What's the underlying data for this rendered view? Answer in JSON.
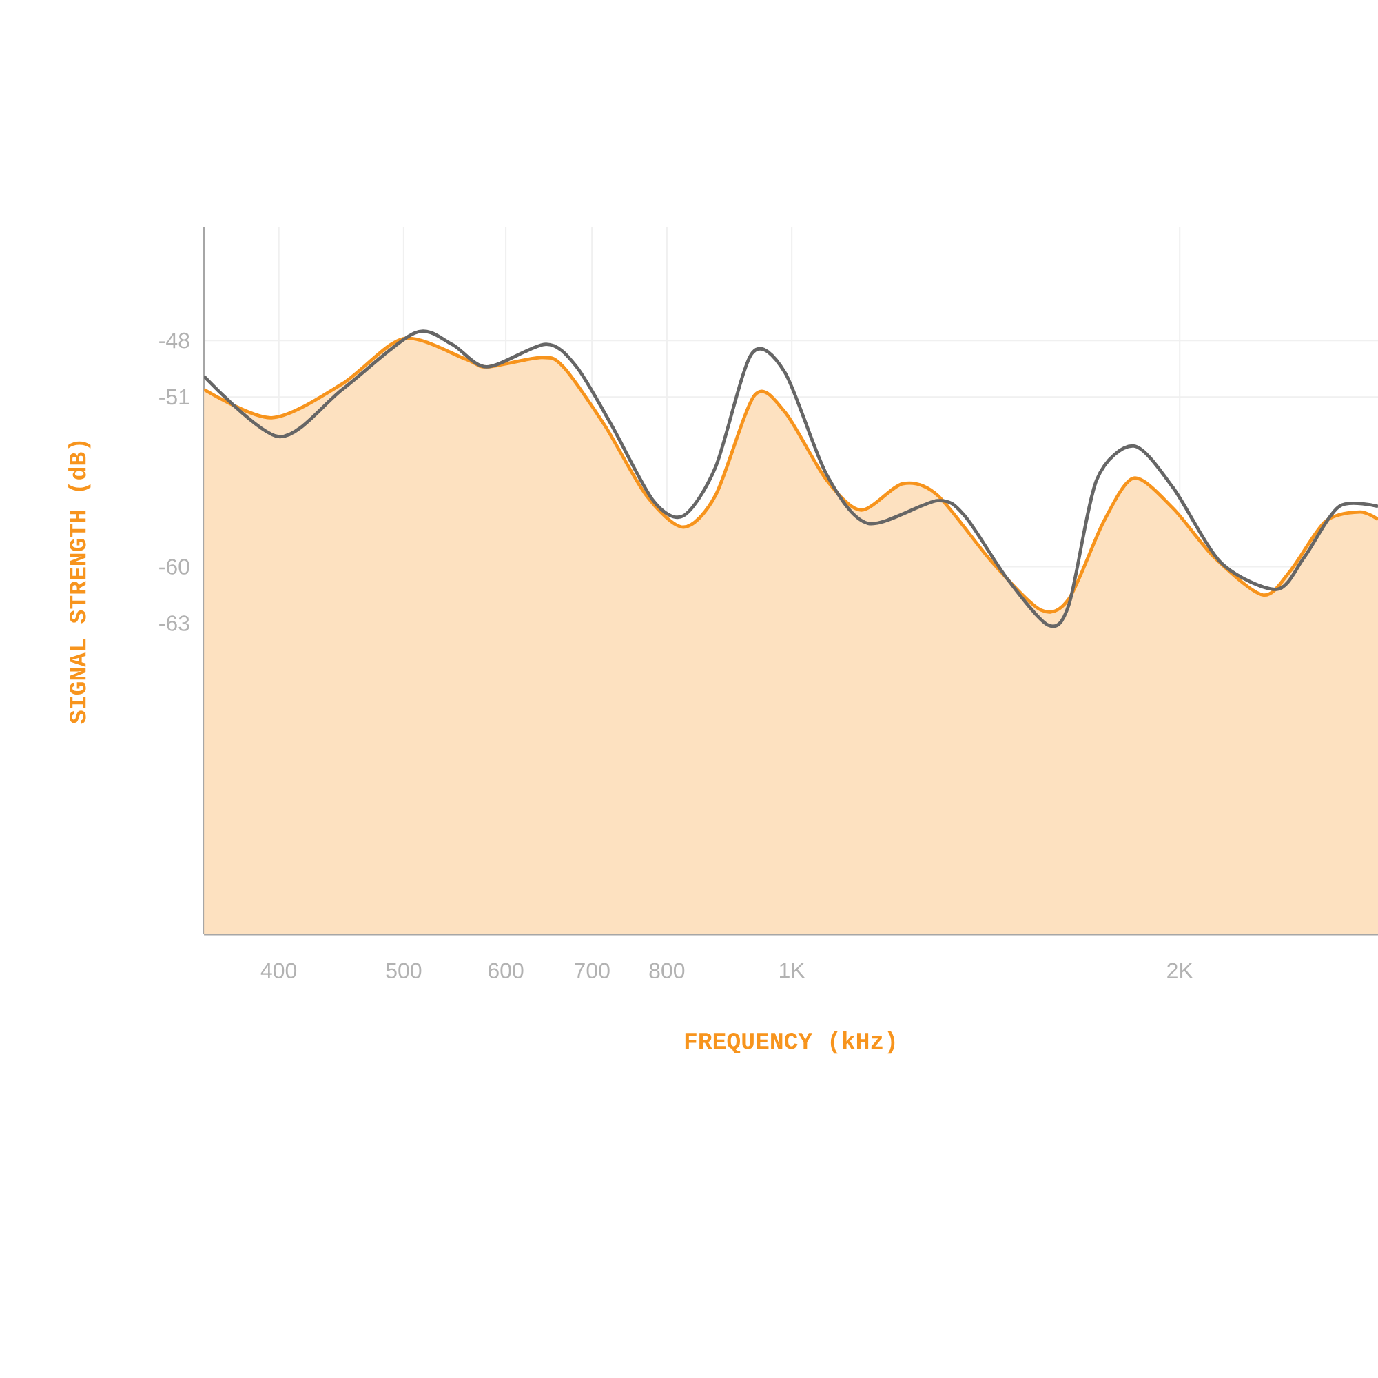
{
  "chart_data": {
    "type": "area",
    "xlabel": "FREQUENCY (kHz)",
    "ylabel": "SIGNAL STRENGTH (dB)",
    "log": "x",
    "grid": true,
    "xlim": [
      350,
      2850
    ],
    "xticks": [
      {
        "value": 400,
        "label": "400"
      },
      {
        "value": 500,
        "label": "500"
      },
      {
        "value": 600,
        "label": "600"
      },
      {
        "value": 700,
        "label": "700"
      },
      {
        "value": 800,
        "label": "800"
      },
      {
        "value": 1000,
        "label": "1K"
      },
      {
        "value": 2000,
        "label": "2K"
      }
    ],
    "ylim": [
      -79.5,
      -42
    ],
    "yticks": [
      -48,
      -51,
      -60,
      -63
    ],
    "series": [
      {
        "color": "#f7941d",
        "x": [
          350,
          395,
          448,
          500,
          559,
          580,
          640,
          665,
          716,
          771,
          824,
          873,
          936,
          988,
          1064,
          1132,
          1219,
          1297,
          1432,
          1561,
          1641,
          1746,
          1843,
          1976,
          2127,
          2320,
          2438,
          2594,
          2759,
          2850
        ],
        "values": [
          -50.6,
          -52.1,
          -50.3,
          -47.9,
          -49.0,
          -49.4,
          -48.9,
          -49.4,
          -52.5,
          -56.2,
          -57.9,
          -56.2,
          -50.9,
          -51.8,
          -55.4,
          -57.0,
          -55.6,
          -56.2,
          -59.8,
          -62.3,
          -61.7,
          -57.6,
          -55.3,
          -56.9,
          -59.5,
          -61.5,
          -60.2,
          -57.6,
          -57.1,
          -57.5
        ]
      },
      {
        "type": "line",
        "color": "#666666",
        "x": [
          350,
          400,
          448,
          510,
          545,
          580,
          645,
          681,
          725,
          781,
          824,
          873,
          931,
          988,
          1064,
          1146,
          1297,
          1362,
          1468,
          1581,
          1641,
          1724,
          1843,
          1976,
          2154,
          2378,
          2498,
          2659,
          2850
        ],
        "values": [
          -49.9,
          -53.1,
          -50.6,
          -47.6,
          -48.2,
          -49.4,
          -48.2,
          -49.4,
          -52.5,
          -56.5,
          -57.3,
          -54.7,
          -48.7,
          -49.7,
          -55.1,
          -57.7,
          -56.5,
          -57.3,
          -60.6,
          -63.1,
          -62.0,
          -55.4,
          -53.6,
          -55.8,
          -59.8,
          -61.2,
          -59.5,
          -56.8,
          -56.8
        ]
      }
    ]
  }
}
